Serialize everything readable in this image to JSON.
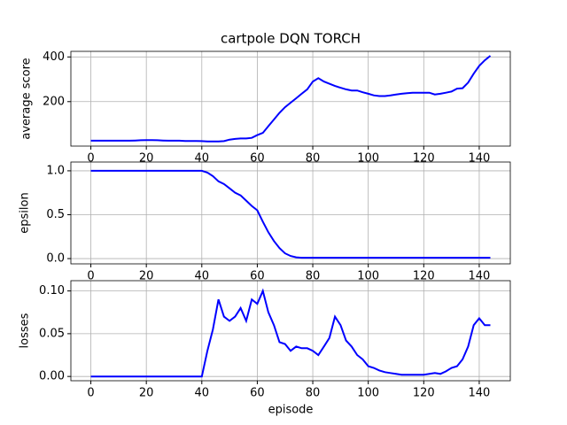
{
  "chart_data": [
    {
      "type": "line",
      "title": "cartpole DQN TORCH",
      "ylabel": "average score",
      "x": [
        0,
        2,
        4,
        6,
        8,
        10,
        12,
        14,
        16,
        18,
        20,
        22,
        24,
        26,
        28,
        30,
        32,
        34,
        36,
        38,
        40,
        42,
        44,
        46,
        48,
        50,
        52,
        54,
        56,
        58,
        60,
        62,
        64,
        66,
        68,
        70,
        72,
        74,
        76,
        78,
        80,
        82,
        84,
        86,
        88,
        90,
        92,
        94,
        96,
        98,
        100,
        102,
        104,
        106,
        108,
        110,
        112,
        114,
        116,
        118,
        120,
        122,
        124,
        126,
        128,
        130,
        132,
        134,
        136,
        138,
        140,
        142,
        144
      ],
      "series": [
        {
          "color": "#0000ff",
          "values": [
            25,
            25,
            25,
            25,
            25,
            25,
            25,
            25,
            26,
            27,
            28,
            28,
            27,
            26,
            25,
            25,
            25,
            24,
            24,
            24,
            23,
            22,
            22,
            22,
            23,
            30,
            33,
            35,
            35,
            38,
            50,
            60,
            90,
            120,
            150,
            175,
            195,
            215,
            235,
            255,
            290,
            305,
            290,
            280,
            270,
            262,
            255,
            250,
            250,
            242,
            235,
            228,
            225,
            225,
            228,
            232,
            235,
            238,
            240,
            240,
            240,
            240,
            232,
            235,
            240,
            245,
            258,
            260,
            285,
            325,
            360,
            385,
            405
          ]
        }
      ],
      "xlim": [
        -7.2,
        151.2
      ],
      "xticks": [
        0,
        20,
        40,
        60,
        80,
        100,
        120,
        140
      ],
      "ylim": [
        1,
        425
      ],
      "yticks": [
        200,
        400
      ],
      "grid": true
    },
    {
      "type": "line",
      "ylabel": "epsilon",
      "x": [
        0,
        2,
        4,
        6,
        8,
        10,
        12,
        14,
        16,
        18,
        20,
        22,
        24,
        26,
        28,
        30,
        32,
        34,
        36,
        38,
        40,
        42,
        44,
        46,
        48,
        50,
        52,
        54,
        56,
        58,
        60,
        62,
        64,
        66,
        68,
        70,
        72,
        74,
        76,
        78,
        80,
        82,
        84,
        86,
        88,
        90,
        92,
        94,
        96,
        98,
        100,
        102,
        104,
        106,
        108,
        110,
        112,
        114,
        116,
        118,
        120,
        122,
        124,
        126,
        128,
        130,
        132,
        134,
        136,
        138,
        140,
        142,
        144
      ],
      "series": [
        {
          "color": "#0000ff",
          "values": [
            1,
            1,
            1,
            1,
            1,
            1,
            1,
            1,
            1,
            1,
            1,
            1,
            1,
            1,
            1,
            1,
            1,
            1,
            1,
            1,
            1,
            0.98,
            0.94,
            0.88,
            0.85,
            0.8,
            0.75,
            0.72,
            0.66,
            0.6,
            0.55,
            0.42,
            0.3,
            0.2,
            0.12,
            0.06,
            0.03,
            0.015,
            0.01,
            0.01,
            0.01,
            0.01,
            0.01,
            0.01,
            0.01,
            0.01,
            0.01,
            0.01,
            0.01,
            0.01,
            0.01,
            0.01,
            0.01,
            0.01,
            0.01,
            0.01,
            0.01,
            0.01,
            0.01,
            0.01,
            0.01,
            0.01,
            0.01,
            0.01,
            0.01,
            0.01,
            0.01,
            0.01,
            0.01,
            0.01,
            0.01,
            0.01,
            0.01
          ]
        }
      ],
      "xlim": [
        -7.2,
        151.2
      ],
      "xticks": [
        0,
        20,
        40,
        60,
        80,
        100,
        120,
        140
      ],
      "ylim": [
        -0.06,
        1.1
      ],
      "yticks": [
        {
          "value": 0,
          "label": "0.0"
        },
        {
          "value": 0.5,
          "label": "0.5"
        },
        {
          "value": 1,
          "label": "1.0"
        }
      ],
      "grid": true
    },
    {
      "type": "line",
      "ylabel": "losses",
      "xlabel": "episode",
      "x": [
        0,
        2,
        4,
        6,
        8,
        10,
        12,
        14,
        16,
        18,
        20,
        22,
        24,
        26,
        28,
        30,
        32,
        34,
        36,
        38,
        40,
        42,
        44,
        46,
        48,
        50,
        52,
        54,
        56,
        58,
        60,
        62,
        64,
        66,
        68,
        70,
        72,
        74,
        76,
        78,
        80,
        82,
        84,
        86,
        88,
        90,
        92,
        94,
        96,
        98,
        100,
        102,
        104,
        106,
        108,
        110,
        112,
        114,
        116,
        118,
        120,
        122,
        124,
        126,
        128,
        130,
        132,
        134,
        136,
        138,
        140,
        142,
        144
      ],
      "series": [
        {
          "color": "#0000ff",
          "values": [
            0,
            0,
            0,
            0,
            0,
            0,
            0,
            0,
            0,
            0,
            0,
            0,
            0,
            0,
            0,
            0,
            0,
            0,
            0,
            0,
            0,
            0.03,
            0.055,
            0.09,
            0.07,
            0.065,
            0.07,
            0.08,
            0.065,
            0.09,
            0.085,
            0.1,
            0.075,
            0.06,
            0.04,
            0.038,
            0.03,
            0.035,
            0.033,
            0.033,
            0.03,
            0.025,
            0.035,
            0.045,
            0.07,
            0.06,
            0.042,
            0.035,
            0.025,
            0.02,
            0.012,
            0.01,
            0.007,
            0.005,
            0.004,
            0.003,
            0.002,
            0.002,
            0.002,
            0.002,
            0.002,
            0.003,
            0.004,
            0.003,
            0.006,
            0.01,
            0.012,
            0.02,
            0.035,
            0.06,
            0.068,
            0.06,
            0.06
          ]
        }
      ],
      "xlim": [
        -7.2,
        151.2
      ],
      "xticks": [
        0,
        20,
        40,
        60,
        80,
        100,
        120,
        140
      ],
      "ylim": [
        -0.005,
        0.112
      ],
      "yticks": [
        {
          "value": 0,
          "label": "0.00"
        },
        {
          "value": 0.05,
          "label": "0.05"
        },
        {
          "value": 0.1,
          "label": "0.10"
        }
      ],
      "grid": true
    }
  ]
}
